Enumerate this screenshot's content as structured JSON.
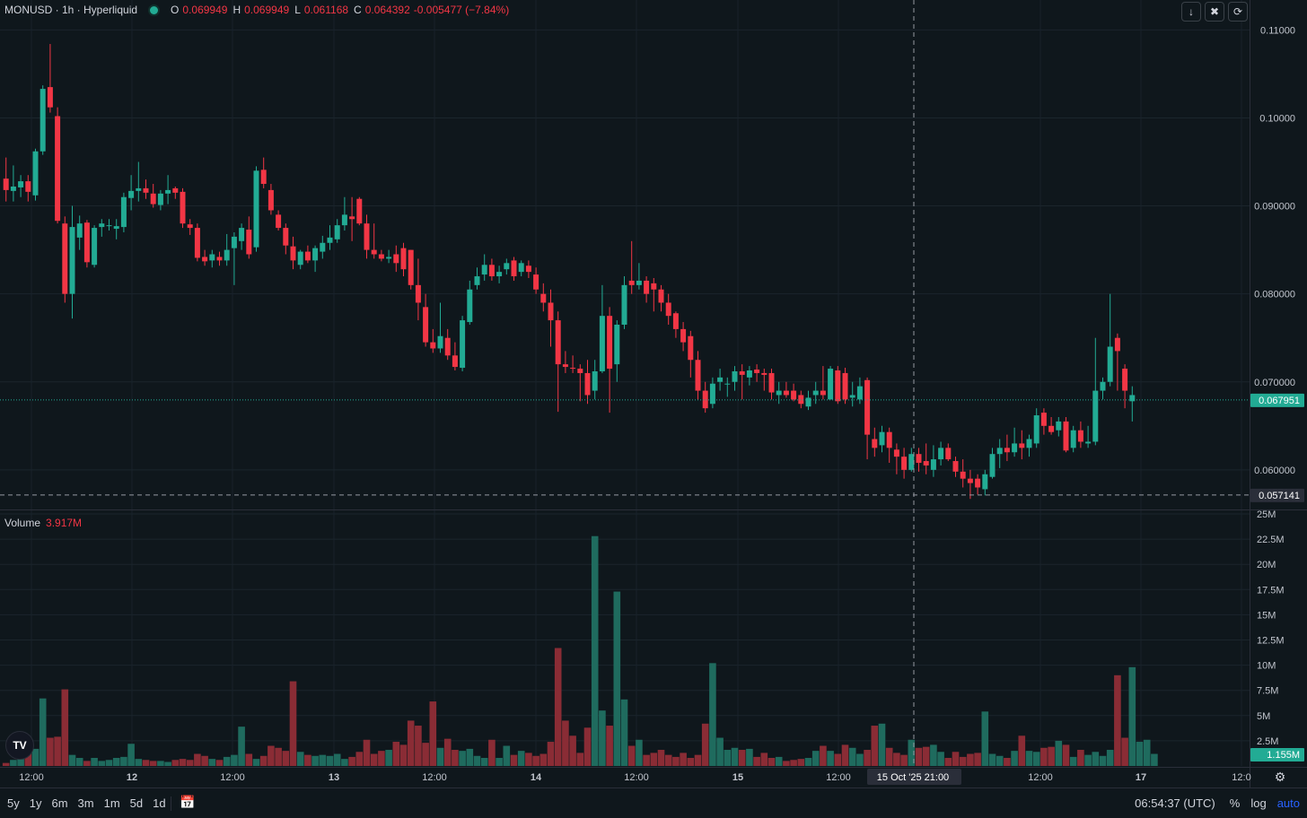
{
  "legend": {
    "symbol_line": "MONUSD · 1h · Hyperliquid",
    "o_label": "O",
    "o_value": "0.069949",
    "h_label": "H",
    "h_value": "0.069949",
    "l_label": "L",
    "l_value": "0.061168",
    "c_label": "C",
    "c_value": "0.064392",
    "change": "-0.005477 (−7.84%)"
  },
  "volume_legend": {
    "label": "Volume",
    "value": "3.917M"
  },
  "top_buttons": [
    "arrow-down-icon",
    "collapse-icon",
    "reset-icon"
  ],
  "price_labels": {
    "current": "0.067951",
    "crosshair": "0.057141",
    "volume_current": "1.155M"
  },
  "crosshair_time": "15 Oct '25   21:00",
  "bottom": {
    "ranges": [
      "5y",
      "1y",
      "6m",
      "3m",
      "1m",
      "5d",
      "1d"
    ],
    "time": "06:54:37 (UTC)",
    "percent": "%",
    "log": "log",
    "auto": "auto"
  },
  "colors": {
    "up": "#22ab94",
    "down": "#f23645",
    "up_volume": "#1f6b5e",
    "down_volume": "#8a2c35",
    "background": "#0f171c"
  },
  "chart_data": [
    {
      "type": "candlestick",
      "title": "MONUSD · 1h · Hyperliquid",
      "x_tick_labels": [
        "12:00",
        "12",
        "12:00",
        "13",
        "12:00",
        "14",
        "12:00",
        "15",
        "12:00",
        "15 Oct '25   21:00",
        "12:00",
        "17",
        "12:0"
      ],
      "y_tick_labels": [
        "0.11000",
        "0.10000",
        "0.090000",
        "0.080000",
        "0.070000",
        "0.060000"
      ],
      "ylim": [
        0.0555,
        0.1134
      ],
      "grid": true,
      "candles": [
        [
          0.0931,
          0.0955,
          0.0905,
          0.0918
        ],
        [
          0.0917,
          0.0946,
          0.0905,
          0.0922
        ],
        [
          0.0921,
          0.0935,
          0.091,
          0.0928
        ],
        [
          0.0928,
          0.0935,
          0.0905,
          0.0916
        ],
        [
          0.0912,
          0.0965,
          0.0906,
          0.0962
        ],
        [
          0.0962,
          0.1037,
          0.0958,
          0.1033
        ],
        [
          0.1035,
          0.1084,
          0.1006,
          0.1012
        ],
        [
          0.1002,
          0.1012,
          0.088,
          0.0883
        ],
        [
          0.088,
          0.0888,
          0.079,
          0.08
        ],
        [
          0.08,
          0.09,
          0.0772,
          0.0876
        ],
        [
          0.0864,
          0.0889,
          0.085,
          0.088
        ],
        [
          0.0881,
          0.0884,
          0.083,
          0.0836
        ],
        [
          0.0833,
          0.0878,
          0.083,
          0.0875
        ],
        [
          0.0876,
          0.0885,
          0.0865,
          0.088
        ],
        [
          0.0878,
          0.0885,
          0.0872,
          0.0878
        ],
        [
          0.0874,
          0.0885,
          0.0862,
          0.0877
        ],
        [
          0.0876,
          0.0915,
          0.087,
          0.091
        ],
        [
          0.0909,
          0.0935,
          0.0895,
          0.0917
        ],
        [
          0.0917,
          0.095,
          0.0905,
          0.092
        ],
        [
          0.092,
          0.093,
          0.0908,
          0.0915
        ],
        [
          0.0914,
          0.0925,
          0.0898,
          0.0902
        ],
        [
          0.0901,
          0.0918,
          0.0895,
          0.0914
        ],
        [
          0.0914,
          0.0935,
          0.0902,
          0.0918
        ],
        [
          0.092,
          0.0922,
          0.0908,
          0.0915
        ],
        [
          0.0916,
          0.092,
          0.0875,
          0.088
        ],
        [
          0.0879,
          0.0885,
          0.0867,
          0.0875
        ],
        [
          0.0875,
          0.088,
          0.0837,
          0.0841
        ],
        [
          0.0842,
          0.085,
          0.0832,
          0.0837
        ],
        [
          0.0838,
          0.085,
          0.083,
          0.0845
        ],
        [
          0.0842,
          0.0848,
          0.0832,
          0.0838
        ],
        [
          0.0838,
          0.0868,
          0.0832,
          0.085
        ],
        [
          0.0852,
          0.087,
          0.081,
          0.0865
        ],
        [
          0.086,
          0.088,
          0.085,
          0.0875
        ],
        [
          0.0873,
          0.0888,
          0.084,
          0.0845
        ],
        [
          0.0853,
          0.0945,
          0.0848,
          0.094
        ],
        [
          0.0941,
          0.0955,
          0.092,
          0.0925
        ],
        [
          0.0918,
          0.0925,
          0.089,
          0.0895
        ],
        [
          0.089,
          0.0895,
          0.0872,
          0.0875
        ],
        [
          0.0875,
          0.088,
          0.0845,
          0.0855
        ],
        [
          0.0854,
          0.0865,
          0.0828,
          0.0838
        ],
        [
          0.0833,
          0.085,
          0.0828,
          0.0848
        ],
        [
          0.0848,
          0.0855,
          0.0835,
          0.0838
        ],
        [
          0.0838,
          0.0855,
          0.0825,
          0.0852
        ],
        [
          0.0848,
          0.0866,
          0.084,
          0.0858
        ],
        [
          0.0858,
          0.0878,
          0.085,
          0.0864
        ],
        [
          0.0862,
          0.0885,
          0.0858,
          0.0878
        ],
        [
          0.0878,
          0.091,
          0.0872,
          0.089
        ],
        [
          0.0888,
          0.091,
          0.086,
          0.0885
        ],
        [
          0.0908,
          0.091,
          0.0878,
          0.088
        ],
        [
          0.088,
          0.089,
          0.084,
          0.085
        ],
        [
          0.085,
          0.088,
          0.084,
          0.0845
        ],
        [
          0.0845,
          0.085,
          0.0837,
          0.084
        ],
        [
          0.084,
          0.085,
          0.0835,
          0.0842
        ],
        [
          0.0845,
          0.0855,
          0.0825,
          0.0835
        ],
        [
          0.0852,
          0.0858,
          0.082,
          0.0828
        ],
        [
          0.085,
          0.085,
          0.0805,
          0.081
        ],
        [
          0.081,
          0.084,
          0.077,
          0.079
        ],
        [
          0.0785,
          0.08,
          0.074,
          0.0745
        ],
        [
          0.0745,
          0.076,
          0.0733,
          0.0738
        ],
        [
          0.0738,
          0.079,
          0.0733,
          0.0752
        ],
        [
          0.075,
          0.076,
          0.0725,
          0.073
        ],
        [
          0.073,
          0.0745,
          0.0713,
          0.0717
        ],
        [
          0.0716,
          0.0775,
          0.0712,
          0.077
        ],
        [
          0.0768,
          0.0815,
          0.0765,
          0.0805
        ],
        [
          0.081,
          0.083,
          0.0805,
          0.082
        ],
        [
          0.0822,
          0.0845,
          0.0815,
          0.0833
        ],
        [
          0.0833,
          0.084,
          0.0815,
          0.082
        ],
        [
          0.082,
          0.0832,
          0.0812,
          0.0825
        ],
        [
          0.0828,
          0.084,
          0.0822,
          0.0835
        ],
        [
          0.0838,
          0.0842,
          0.0815,
          0.082
        ],
        [
          0.0825,
          0.0838,
          0.082,
          0.0835
        ],
        [
          0.0832,
          0.0838,
          0.0818,
          0.0825
        ],
        [
          0.0822,
          0.083,
          0.08,
          0.0805
        ],
        [
          0.08,
          0.0812,
          0.078,
          0.079
        ],
        [
          0.079,
          0.0805,
          0.074,
          0.077
        ],
        [
          0.077,
          0.078,
          0.0666,
          0.072
        ],
        [
          0.072,
          0.0735,
          0.071,
          0.0717
        ],
        [
          0.0716,
          0.073,
          0.071,
          0.0715
        ],
        [
          0.0715,
          0.072,
          0.0678,
          0.071
        ],
        [
          0.071,
          0.0725,
          0.0675,
          0.0685
        ],
        [
          0.069,
          0.0725,
          0.068,
          0.0712
        ],
        [
          0.0712,
          0.081,
          0.071,
          0.0775
        ],
        [
          0.0775,
          0.0785,
          0.0665,
          0.0715
        ],
        [
          0.072,
          0.077,
          0.07,
          0.0765
        ],
        [
          0.0765,
          0.082,
          0.076,
          0.081
        ],
        [
          0.0815,
          0.086,
          0.08,
          0.081
        ],
        [
          0.081,
          0.0835,
          0.0805,
          0.0815
        ],
        [
          0.0815,
          0.082,
          0.079,
          0.08
        ],
        [
          0.0812,
          0.0818,
          0.078,
          0.0805
        ],
        [
          0.0805,
          0.081,
          0.078,
          0.079
        ],
        [
          0.079,
          0.08,
          0.0765,
          0.0775
        ],
        [
          0.0778,
          0.078,
          0.075,
          0.076
        ],
        [
          0.076,
          0.0768,
          0.0735,
          0.0745
        ],
        [
          0.0752,
          0.0758,
          0.0705,
          0.0725
        ],
        [
          0.0725,
          0.0735,
          0.068,
          0.069
        ],
        [
          0.069,
          0.07,
          0.0665,
          0.067
        ],
        [
          0.0675,
          0.0705,
          0.067,
          0.0698
        ],
        [
          0.07,
          0.0715,
          0.069,
          0.0705
        ],
        [
          0.0697,
          0.0705,
          0.0683,
          0.0698
        ],
        [
          0.07,
          0.0718,
          0.069,
          0.0712
        ],
        [
          0.0712,
          0.072,
          0.068,
          0.0708
        ],
        [
          0.0705,
          0.0718,
          0.0696,
          0.0713
        ],
        [
          0.0714,
          0.072,
          0.07,
          0.071
        ],
        [
          0.071,
          0.0715,
          0.069,
          0.0708
        ],
        [
          0.071,
          0.0715,
          0.068,
          0.0688
        ],
        [
          0.0685,
          0.07,
          0.0675,
          0.069
        ],
        [
          0.069,
          0.07,
          0.0682,
          0.0685
        ],
        [
          0.069,
          0.0698,
          0.0678,
          0.068
        ],
        [
          0.0685,
          0.069,
          0.067,
          0.0675
        ],
        [
          0.0672,
          0.069,
          0.0668,
          0.0682
        ],
        [
          0.0685,
          0.07,
          0.0675,
          0.069
        ],
        [
          0.069,
          0.0718,
          0.068,
          0.0685
        ],
        [
          0.068,
          0.0718,
          0.068,
          0.0715
        ],
        [
          0.0713,
          0.0718,
          0.0675,
          0.0678
        ],
        [
          0.071,
          0.0716,
          0.0675,
          0.068
        ],
        [
          0.0682,
          0.07,
          0.0672,
          0.0685
        ],
        [
          0.068,
          0.0705,
          0.0675,
          0.0695
        ],
        [
          0.0702,
          0.0705,
          0.0612,
          0.064
        ],
        [
          0.0635,
          0.0648,
          0.0615,
          0.0625
        ],
        [
          0.0628,
          0.065,
          0.062,
          0.0643
        ],
        [
          0.0643,
          0.0648,
          0.0608,
          0.0625
        ],
        [
          0.0623,
          0.063,
          0.0595,
          0.0615
        ],
        [
          0.0615,
          0.0625,
          0.059,
          0.06
        ],
        [
          0.06,
          0.0625,
          0.0598,
          0.0618
        ],
        [
          0.0618,
          0.0625,
          0.0598,
          0.0608
        ],
        [
          0.061,
          0.063,
          0.0595,
          0.0605
        ],
        [
          0.06,
          0.0628,
          0.0592,
          0.0612
        ],
        [
          0.0612,
          0.0632,
          0.0605,
          0.0625
        ],
        [
          0.0625,
          0.063,
          0.061,
          0.0612
        ],
        [
          0.061,
          0.0615,
          0.0592,
          0.0598
        ],
        [
          0.0598,
          0.0612,
          0.058,
          0.059
        ],
        [
          0.059,
          0.06,
          0.0567,
          0.0585
        ],
        [
          0.059,
          0.0595,
          0.0572,
          0.058
        ],
        [
          0.0578,
          0.06,
          0.0571,
          0.0595
        ],
        [
          0.0592,
          0.0625,
          0.059,
          0.0618
        ],
        [
          0.0618,
          0.0635,
          0.0602,
          0.0625
        ],
        [
          0.0625,
          0.064,
          0.061,
          0.062
        ],
        [
          0.062,
          0.0648,
          0.0615,
          0.063
        ],
        [
          0.063,
          0.0645,
          0.0612,
          0.0625
        ],
        [
          0.0625,
          0.064,
          0.0615,
          0.0635
        ],
        [
          0.063,
          0.067,
          0.0625,
          0.0662
        ],
        [
          0.0665,
          0.067,
          0.064,
          0.065
        ],
        [
          0.065,
          0.066,
          0.064,
          0.0643
        ],
        [
          0.0645,
          0.066,
          0.0638,
          0.0655
        ],
        [
          0.0655,
          0.066,
          0.062,
          0.0622
        ],
        [
          0.0625,
          0.065,
          0.062,
          0.0645
        ],
        [
          0.0645,
          0.0655,
          0.0625,
          0.0632
        ],
        [
          0.063,
          0.065,
          0.0625,
          0.0632
        ],
        [
          0.0632,
          0.075,
          0.0628,
          0.069
        ],
        [
          0.069,
          0.0705,
          0.068,
          0.07
        ],
        [
          0.07,
          0.08,
          0.0695,
          0.074
        ],
        [
          0.075,
          0.0755,
          0.069,
          0.0735
        ],
        [
          0.0715,
          0.072,
          0.067,
          0.069
        ],
        [
          0.0678,
          0.0695,
          0.0655,
          0.0685
        ]
      ]
    },
    {
      "type": "bar",
      "title": "Volume",
      "y_tick_labels": [
        "25M",
        "22.5M",
        "20M",
        "17.5M",
        "15M",
        "12.5M",
        "10M",
        "7.5M",
        "5M",
        "2.5M"
      ],
      "ylim": [
        0,
        25
      ],
      "unit": "M",
      "volumes": [
        0.3,
        0.6,
        1.5,
        2.0,
        1.7,
        6.7,
        2.8,
        2.9,
        7.6,
        1.1,
        0.8,
        0.5,
        0.8,
        0.5,
        0.6,
        0.8,
        0.9,
        2.2,
        0.7,
        0.6,
        0.5,
        0.5,
        0.4,
        0.6,
        0.7,
        0.6,
        1.2,
        1.0,
        0.7,
        0.6,
        0.9,
        1.1,
        3.9,
        1.2,
        0.7,
        1.0,
        2.0,
        1.8,
        1.5,
        8.4,
        1.4,
        1.1,
        1.0,
        1.1,
        1.0,
        1.2,
        0.7,
        0.9,
        1.4,
        2.6,
        1.2,
        1.5,
        1.6,
        2.4,
        2.1,
        4.5,
        4.0,
        2.3,
        6.4,
        1.8,
        2.7,
        1.6,
        1.5,
        1.7,
        1.0,
        0.8,
        2.6,
        0.8,
        2.0,
        1.1,
        1.5,
        1.3,
        1.0,
        1.2,
        2.4,
        11.7,
        4.5,
        3.0,
        1.3,
        3.8,
        22.8,
        5.5,
        4.0,
        17.3,
        6.6,
        2.0,
        2.6,
        1.1,
        1.3,
        1.6,
        1.1,
        0.9,
        1.3,
        0.8,
        1.1,
        4.2,
        10.2,
        2.8,
        1.6,
        1.8,
        1.6,
        1.7,
        0.9,
        1.3,
        0.8,
        0.9,
        0.5,
        0.6,
        0.7,
        0.8,
        1.5,
        2.0,
        1.5,
        1.2,
        2.1,
        1.8,
        1.2,
        1.6,
        4.0,
        4.2,
        1.8,
        1.3,
        1.1,
        2.6,
        1.8,
        1.9,
        2.1,
        1.4,
        0.8,
        1.4,
        0.9,
        1.2,
        1.3,
        5.4,
        1.2,
        1.0,
        0.8,
        1.5,
        3.0,
        1.5,
        1.4,
        1.8,
        1.9,
        2.5,
        2.1,
        0.9,
        1.6,
        1.1,
        1.4,
        1.0,
        1.6,
        9.0,
        2.8,
        9.8,
        2.4,
        2.6,
        1.2
      ]
    }
  ]
}
